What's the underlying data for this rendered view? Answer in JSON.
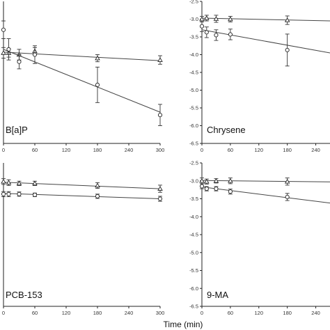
{
  "figure": {
    "xlabel": "Time (min)"
  },
  "chart_data": [
    {
      "type": "line",
      "panel_label": "B[a]P",
      "xticks": [
        0,
        60,
        120,
        180,
        240,
        300
      ],
      "xlim": [
        0,
        300
      ],
      "yticks": [],
      "ylim": [
        -6.5,
        -2.5
      ],
      "series": [
        {
          "marker": "triangle",
          "x": [
            0,
            10,
            30,
            60,
            180,
            300
          ],
          "y": [
            -3.95,
            -3.95,
            -4.0,
            -3.9,
            -4.1,
            -4.15
          ],
          "err": [
            0.15,
            0.12,
            0.15,
            0.1,
            0.1,
            0.12
          ],
          "fit": [
            [
              0,
              -3.93
            ],
            [
              300,
              -4.17
            ]
          ]
        },
        {
          "marker": "circle",
          "x": [
            0,
            10,
            30,
            60,
            180,
            300
          ],
          "y": [
            -3.3,
            -3.85,
            -4.2,
            -4.0,
            -4.85,
            -5.7
          ],
          "err": [
            0.25,
            0.3,
            0.2,
            0.25,
            0.5,
            0.3
          ],
          "fit": [
            [
              0,
              -3.85
            ],
            [
              300,
              -5.62
            ]
          ]
        }
      ]
    },
    {
      "type": "line",
      "panel_label": "Chrysene",
      "xticks": [
        0,
        60,
        120,
        180,
        240
      ],
      "xlim": [
        0,
        270
      ],
      "yticks": [
        -2.5,
        -3.0,
        -3.5,
        -4.0,
        -4.5,
        -5.0,
        -5.5,
        -6.0,
        -6.5
      ],
      "ytick_labels": [
        "-2.5",
        "-3.0",
        "-3.5",
        "-4.0",
        "-4.5",
        "-5.0",
        "-5.5",
        "-6.0",
        "-6.5"
      ],
      "ylim": [
        -6.5,
        -2.5
      ],
      "series": [
        {
          "marker": "triangle",
          "x": [
            0,
            10,
            30,
            60,
            180
          ],
          "y": [
            -3.0,
            -2.97,
            -2.99,
            -3.0,
            -3.03
          ],
          "err": [
            0.08,
            0.08,
            0.1,
            0.08,
            0.12
          ],
          "fit": [
            [
              0,
              -2.97
            ],
            [
              270,
              -3.05
            ]
          ]
        },
        {
          "marker": "circle",
          "x": [
            0,
            10,
            30,
            60,
            180
          ],
          "y": [
            -3.2,
            -3.37,
            -3.45,
            -3.43,
            -3.87
          ],
          "err": [
            0.15,
            0.15,
            0.15,
            0.15,
            0.45
          ],
          "fit": [
            [
              0,
              -3.3
            ],
            [
              270,
              -3.95
            ]
          ]
        }
      ]
    },
    {
      "type": "line",
      "panel_label": "PCB-153",
      "xticks": [
        0,
        60,
        120,
        180,
        240,
        300
      ],
      "xlim": [
        0,
        300
      ],
      "yticks": [],
      "ylim": [
        -6.5,
        -2.5
      ],
      "series": [
        {
          "marker": "triangle",
          "x": [
            0,
            10,
            30,
            60,
            180,
            300
          ],
          "y": [
            -3.02,
            -3.05,
            -3.07,
            -3.07,
            -3.13,
            -3.22
          ],
          "err": [
            0.08,
            0.08,
            0.06,
            0.06,
            0.08,
            0.1
          ],
          "fit": [
            [
              0,
              -3.04
            ],
            [
              300,
              -3.22
            ]
          ]
        },
        {
          "marker": "circle",
          "x": [
            0,
            10,
            30,
            60,
            180,
            300
          ],
          "y": [
            -3.37,
            -3.37,
            -3.37,
            -3.39,
            -3.43,
            -3.5
          ],
          "err": [
            0.07,
            0.07,
            0.06,
            0.05,
            0.06,
            0.07
          ],
          "fit": [
            [
              0,
              -3.35
            ],
            [
              300,
              -3.5
            ]
          ]
        }
      ]
    },
    {
      "type": "line",
      "panel_label": "9-MA",
      "xticks": [
        0,
        60,
        120,
        180,
        240
      ],
      "xlim": [
        0,
        270
      ],
      "yticks": [
        -2.5,
        -3.0,
        -3.5,
        -4.0,
        -4.5,
        -5.0,
        -5.5,
        -6.0,
        -6.5
      ],
      "ytick_labels": [
        "-2.5",
        "-3.0",
        "-3.5",
        "-4.0",
        "-4.5",
        "-5.0",
        "-5.5",
        "-6.0",
        "-6.5"
      ],
      "ylim": [
        -6.5,
        -2.5
      ],
      "series": [
        {
          "marker": "triangle",
          "x": [
            0,
            10,
            30,
            60,
            180
          ],
          "y": [
            -3.0,
            -3.02,
            -3.0,
            -3.0,
            -3.02
          ],
          "err": [
            0.08,
            0.07,
            0.06,
            0.08,
            0.1
          ],
          "fit": [
            [
              0,
              -2.99
            ],
            [
              270,
              -3.03
            ]
          ]
        },
        {
          "marker": "circle",
          "x": [
            0,
            10,
            30,
            60,
            180
          ],
          "y": [
            -3.15,
            -3.22,
            -3.22,
            -3.3,
            -3.45
          ],
          "err": [
            0.07,
            0.06,
            0.06,
            0.07,
            0.1
          ],
          "fit": [
            [
              0,
              -3.17
            ],
            [
              270,
              -3.62
            ]
          ]
        }
      ]
    }
  ]
}
